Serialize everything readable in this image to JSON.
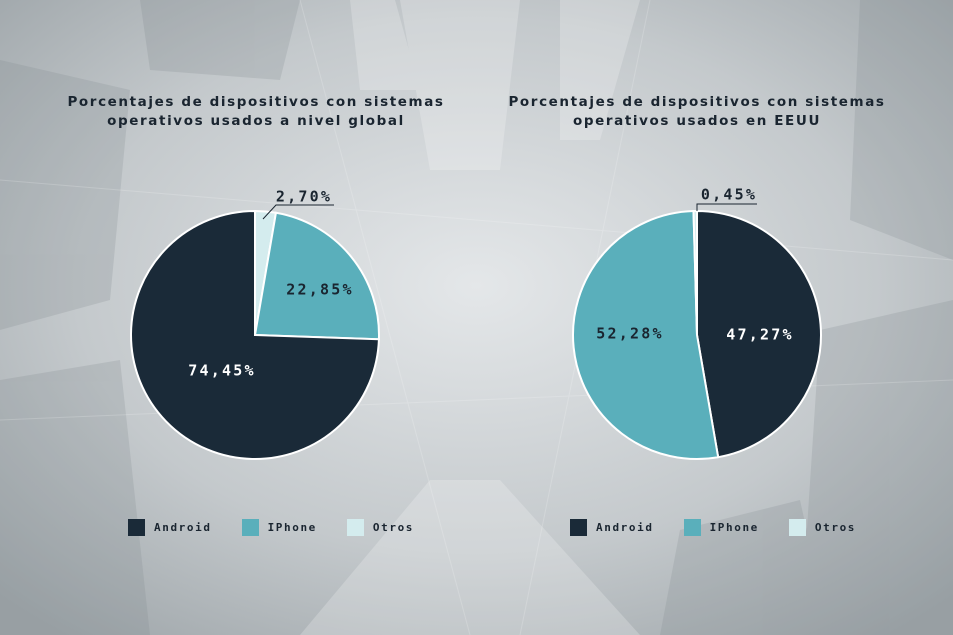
{
  "colors": {
    "android": "#1a2a38",
    "iphone": "#5aafbb",
    "otros": "#d4ecee"
  },
  "chart_data": [
    {
      "type": "pie",
      "title": "Porcentajes de dispositivos con sistemas operativos usados a nivel global",
      "title_lines": [
        "Porcentajes de dispositivos con sistemas",
        "operativos usados a nivel global"
      ],
      "categories": [
        "Android",
        "IPhone",
        "Otros"
      ],
      "values": [
        74.45,
        22.85,
        2.7
      ],
      "labels": [
        "74,45%",
        "22,85%",
        "2,70%"
      ],
      "legend": "bottom"
    },
    {
      "type": "pie",
      "title": "Porcentajes de dispositivos con sistemas operativos usados en EEUU",
      "title_lines": [
        "Porcentajes de dispositivos con sistemas",
        "operativos usados en EEUU"
      ],
      "categories": [
        "Android",
        "IPhone",
        "Otros"
      ],
      "values": [
        47.27,
        52.28,
        0.45
      ],
      "labels": [
        "47,27%",
        "52,28%",
        "0,45%"
      ],
      "legend": "bottom"
    }
  ]
}
